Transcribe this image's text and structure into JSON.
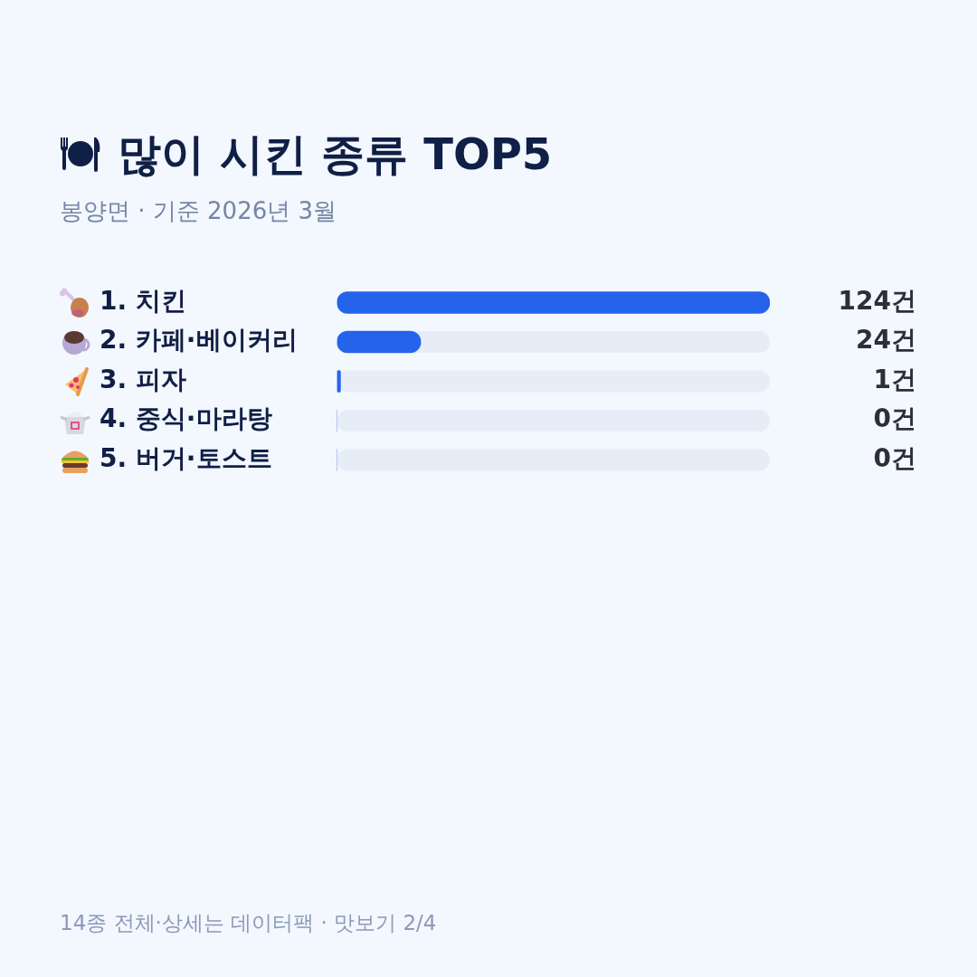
{
  "chart_data": {
    "type": "bar",
    "orientation": "horizontal",
    "title": "많이 시킨 종류 TOP5",
    "subtitle": "봉양면 · 기준 2026년 3월",
    "categories": [
      "1. 치킨",
      "2. 카페·베이커리",
      "3. 피자",
      "4. 중식·마라탕",
      "5. 버거·토스트"
    ],
    "values": [
      124,
      24,
      1,
      0,
      0
    ],
    "color": "#2563eb",
    "value_labels": [
      "124건",
      "24건",
      "1건",
      "0건",
      "0건"
    ],
    "xlim": [
      0,
      124
    ],
    "tick_labels": "y",
    "annotations": [
      "14종 전체·상세는 데이터팩 · 맛보기 2/4"
    ]
  }
}
